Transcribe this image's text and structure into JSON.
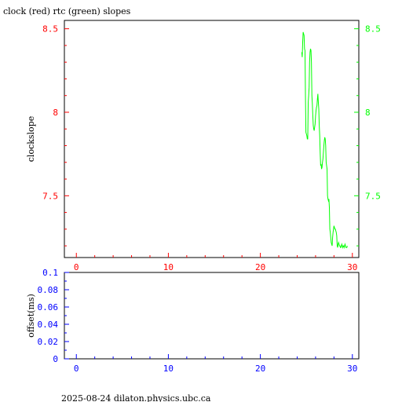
{
  "chart_data": [
    {
      "type": "line",
      "title": "clock (red) rtc (green) slopes",
      "xlabel": "",
      "ylabel": "clockslope",
      "xlim": [
        -1.3,
        30.7
      ],
      "ylim": [
        7.13,
        8.55
      ],
      "x_ticks": [
        "0",
        "10",
        "20",
        "30"
      ],
      "y_ticks_left": [
        "7.5",
        "8",
        "8.5"
      ],
      "y_ticks_right": [
        "7.5",
        "8",
        "8.5"
      ],
      "axis_colors": {
        "left_y": "#ff0000",
        "right_y": "#00ff00",
        "x": "#ff0000"
      },
      "grid": false,
      "series": [
        {
          "color": "#00ff00",
          "x": [
            24.5,
            24.55,
            24.6,
            24.65,
            24.7,
            24.75,
            24.8,
            24.85,
            24.9,
            24.95,
            25.0,
            25.05,
            25.1,
            25.15,
            25.2,
            25.25,
            25.3,
            25.35,
            25.4,
            25.45,
            25.5,
            25.55,
            25.6,
            25.65,
            25.7,
            25.75,
            25.8,
            25.85,
            25.9,
            25.95,
            26.0,
            26.05,
            26.1,
            26.15,
            26.2,
            26.25,
            26.3,
            26.35,
            26.4,
            26.45,
            26.5,
            26.55,
            26.6,
            26.65,
            26.7,
            26.75,
            26.8,
            26.85,
            26.9,
            26.95,
            27.0,
            27.05,
            27.1,
            27.15,
            27.2,
            27.25,
            27.3,
            27.35,
            27.4,
            27.45,
            27.5,
            27.55,
            27.6,
            27.65,
            27.7,
            27.75,
            27.8,
            27.85,
            27.9,
            27.95,
            28.0,
            28.05,
            28.1,
            28.15,
            28.2,
            28.25,
            28.3,
            28.35,
            28.4,
            28.45,
            28.5,
            28.55,
            28.6,
            28.65,
            28.7,
            28.75,
            28.8,
            28.85,
            28.9,
            28.95,
            29.0,
            29.05,
            29.1,
            29.15,
            29.2,
            29.25,
            29.3,
            29.35,
            29.4,
            29.45
          ],
          "y": [
            8.36,
            8.33,
            8.42,
            8.48,
            8.47,
            8.46,
            8.38,
            8.37,
            8.1,
            7.88,
            7.87,
            7.86,
            7.84,
            7.84,
            8.06,
            8.1,
            8.15,
            8.3,
            8.36,
            8.38,
            8.37,
            8.3,
            8.1,
            8.05,
            7.98,
            7.92,
            7.9,
            7.89,
            7.91,
            7.93,
            7.98,
            8.01,
            8.03,
            8.04,
            8.08,
            8.11,
            8.06,
            8.02,
            7.92,
            7.86,
            7.76,
            7.68,
            7.69,
            7.66,
            7.67,
            7.7,
            7.72,
            7.76,
            7.8,
            7.83,
            7.85,
            7.84,
            7.8,
            7.7,
            7.68,
            7.66,
            7.5,
            7.48,
            7.47,
            7.48,
            7.43,
            7.3,
            7.28,
            7.25,
            7.22,
            7.21,
            7.2,
            7.25,
            7.28,
            7.3,
            7.32,
            7.31,
            7.3,
            7.3,
            7.29,
            7.28,
            7.26,
            7.2,
            7.19,
            7.21,
            7.22,
            7.21,
            7.2,
            7.2,
            7.19,
            7.19,
            7.2,
            7.21,
            7.2,
            7.19,
            7.2,
            7.2,
            7.19,
            7.2,
            7.21,
            7.2,
            7.19,
            7.19,
            7.19,
            7.2
          ]
        }
      ]
    },
    {
      "type": "line",
      "title": "",
      "xlabel": "",
      "ylabel": "offset(ms)",
      "xlim": [
        -1.3,
        30.7
      ],
      "ylim": [
        0,
        0.1
      ],
      "x_ticks": [
        "0",
        "10",
        "20",
        "30"
      ],
      "y_ticks_left": [
        "0",
        "0.02",
        "0.04",
        "0.06",
        "0.08",
        "0.1"
      ],
      "axis_colors": {
        "left_y": "#0000ff",
        "x": "#0000ff"
      },
      "grid": false,
      "series": []
    }
  ],
  "footer": {
    "text": "2025-08-24 dilaton.physics.ubc.ca"
  }
}
